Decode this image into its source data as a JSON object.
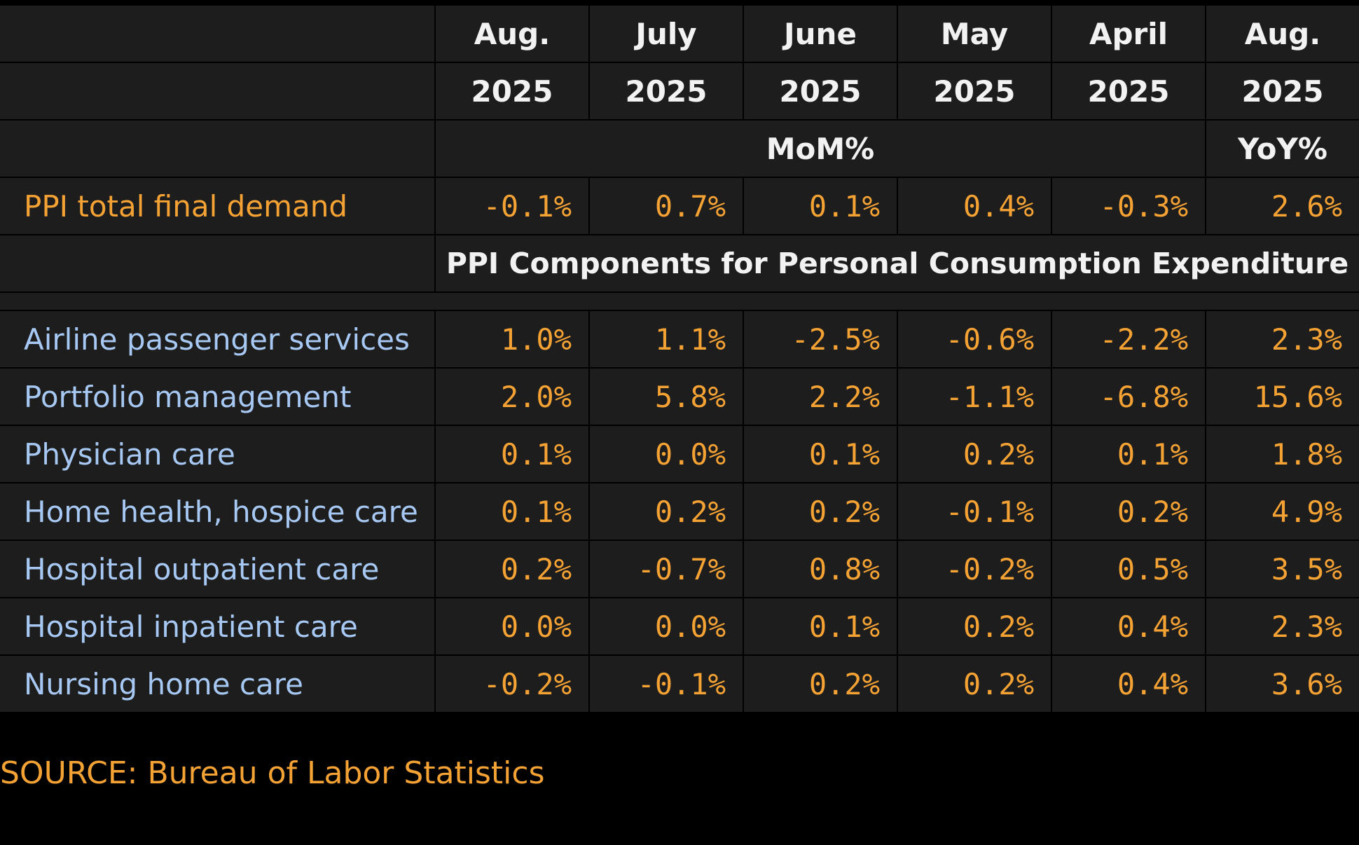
{
  "chart_data": {
    "type": "table",
    "columns": [
      {
        "month": "Aug.",
        "year": "2025"
      },
      {
        "month": "July",
        "year": "2025"
      },
      {
        "month": "June",
        "year": "2025"
      },
      {
        "month": "May",
        "year": "2025"
      },
      {
        "month": "April",
        "year": "2025"
      },
      {
        "month": "Aug.",
        "year": "2025"
      }
    ],
    "mom_label": "MoM%",
    "yoy_label": "YoY%",
    "headline": {
      "label": "PPI total final demand",
      "values": [
        "-0.1%",
        "0.7%",
        "0.1%",
        "0.4%",
        "-0.3%",
        "2.6%"
      ]
    },
    "section_title": "PPI Components for Personal Consumption Expenditure",
    "rows": [
      {
        "label": "Airline passenger services",
        "values": [
          "1.0%",
          "1.1%",
          "-2.5%",
          "-0.6%",
          "-2.2%",
          "2.3%"
        ]
      },
      {
        "label": "Portfolio management",
        "values": [
          "2.0%",
          "5.8%",
          "2.2%",
          "-1.1%",
          "-6.8%",
          "15.6%"
        ]
      },
      {
        "label": "Physician care",
        "values": [
          "0.1%",
          "0.0%",
          "0.1%",
          "0.2%",
          "0.1%",
          "1.8%"
        ]
      },
      {
        "label": "Home health, hospice care",
        "values": [
          "0.1%",
          "0.2%",
          "0.2%",
          "-0.1%",
          "0.2%",
          "4.9%"
        ]
      },
      {
        "label": "Hospital outpatient care",
        "values": [
          "0.2%",
          "-0.7%",
          "0.8%",
          "-0.2%",
          "0.5%",
          "3.5%"
        ]
      },
      {
        "label": "Hospital inpatient care",
        "values": [
          "0.0%",
          "0.0%",
          "0.1%",
          "0.2%",
          "0.4%",
          "2.3%"
        ]
      },
      {
        "label": "Nursing home care",
        "values": [
          "-0.2%",
          "-0.1%",
          "0.2%",
          "0.2%",
          "0.4%",
          "3.6%"
        ]
      }
    ],
    "source": "SOURCE: Bureau of Labor Statistics"
  },
  "colors": {
    "background": "#000000",
    "cell": "#1d1d1d",
    "header_text": "#f2f2f2",
    "value_text": "#f5a234",
    "component_label": "#a6c8f2"
  }
}
